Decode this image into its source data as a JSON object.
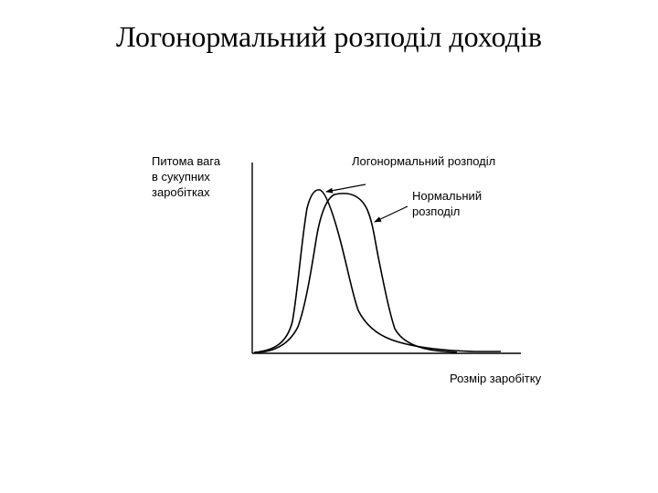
{
  "title": "Логонормальний розподіл доходів",
  "y_axis_label": [
    "Питома вага",
    "в сукупних",
    "заробітках"
  ],
  "lognormal_label": "Логонормальний розподіл",
  "normal_label": [
    "Нормальний",
    "розподіл"
  ],
  "x_axis_label": "Розмір заробітку",
  "colors": {
    "line": "#000000",
    "background": "#ffffff"
  }
}
